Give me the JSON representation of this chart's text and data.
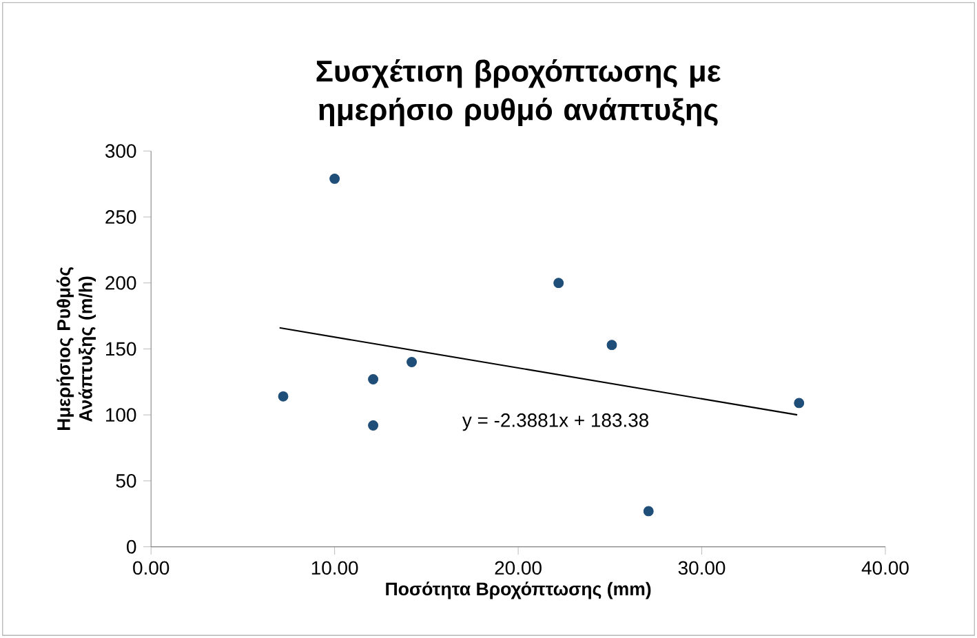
{
  "chart_data": {
    "type": "scatter",
    "title": "Συσχέτιση βροχόπτωσης με ημερήσιο ρυθμό ανάπτυξης",
    "xlabel": "Ποσότητα Βροχόπτωσης (mm)",
    "ylabel": "Ημερήσιος Ρυθμός  Ανάπτυξης (m/h)",
    "xlim": [
      0,
      40
    ],
    "xticks": [
      {
        "value": 0,
        "label": "0.00"
      },
      {
        "value": 10,
        "label": "10.00"
      },
      {
        "value": 20,
        "label": "20.00"
      },
      {
        "value": 30,
        "label": "30.00"
      },
      {
        "value": 40,
        "label": "40.00"
      }
    ],
    "ylim": [
      0,
      300
    ],
    "yticks": [
      0,
      50,
      100,
      150,
      200,
      250,
      300
    ],
    "series": [
      {
        "marker": "circle",
        "color": "#1f4e79",
        "x": [
          7.2,
          10.0,
          12.1,
          12.1,
          14.2,
          22.2,
          25.1,
          27.1,
          35.3
        ],
        "values": [
          114,
          279,
          127,
          92,
          140,
          200,
          153,
          27,
          109
        ]
      },
      {
        "type": "line",
        "color": "#000000",
        "x": [
          7.0,
          35.2
        ],
        "values": [
          166,
          100
        ]
      }
    ],
    "annotations": [
      "y = -2.3881x + 183.38"
    ]
  }
}
